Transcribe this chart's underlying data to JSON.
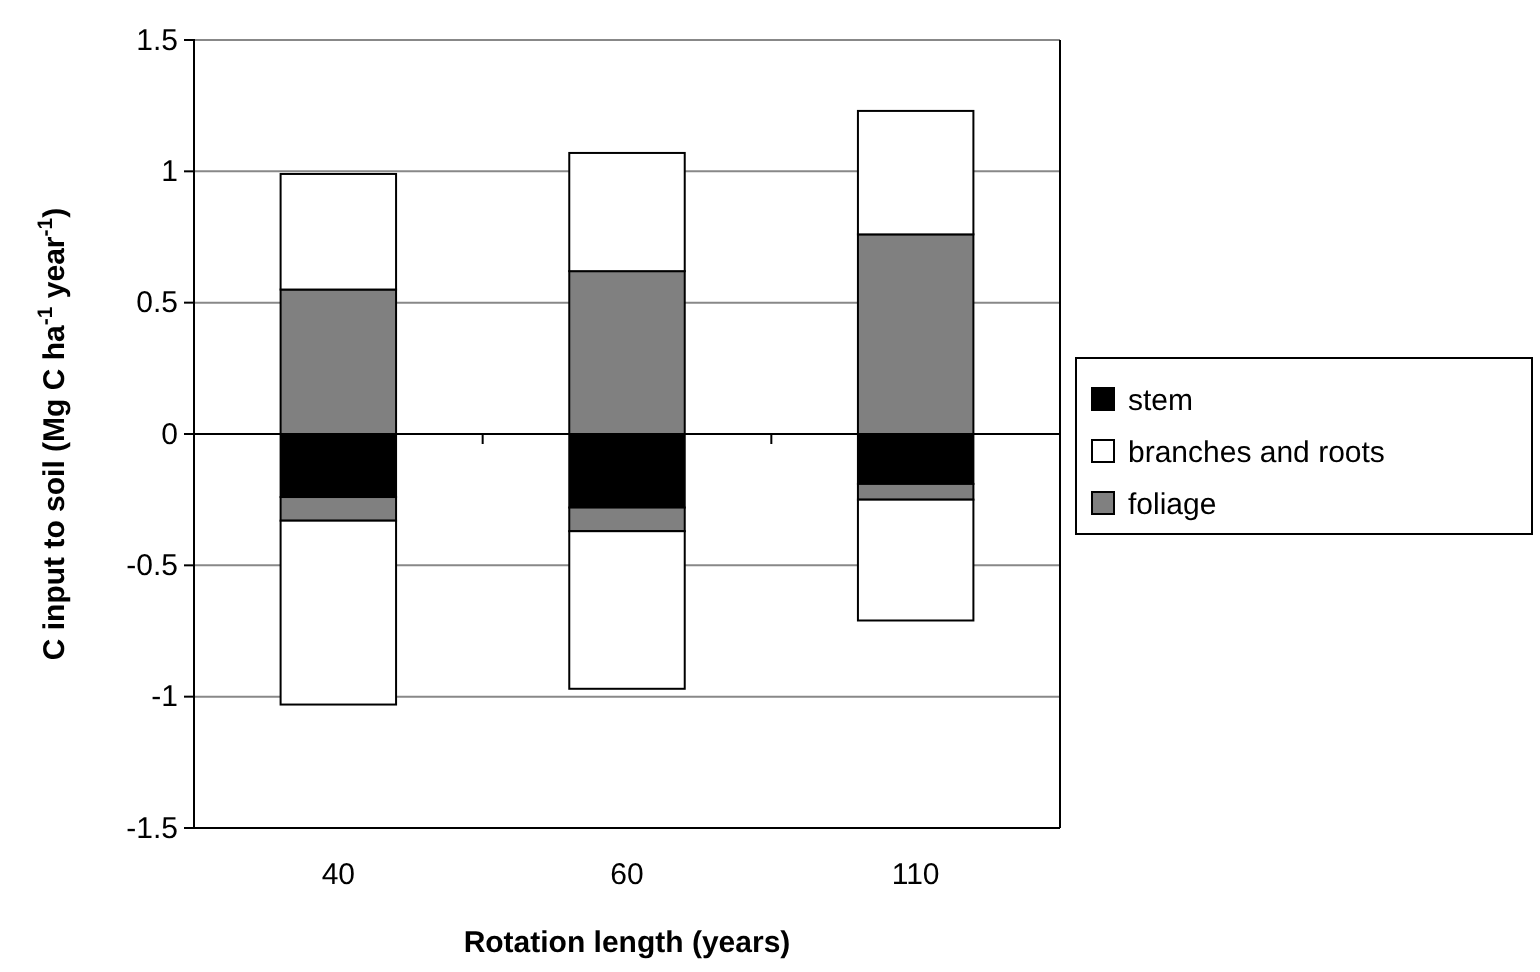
{
  "chart_data": {
    "type": "bar",
    "stacked": true,
    "xlabel": "Rotation length (years)",
    "ylabel": "C input to soil (Mg C ha$^{-1}$ year$^{-1}$)",
    "categories": [
      "40",
      "60",
      "110"
    ],
    "series": [
      {
        "name": "stem",
        "color": "#000000",
        "values": [
          -0.24,
          -0.28,
          -0.19
        ]
      },
      {
        "color": "#808080",
        "values": [
          -0.09,
          -0.09,
          -0.06
        ]
      },
      {
        "name": "branches and roots",
        "color": "#ffffff",
        "values": [
          -0.7,
          -0.6,
          -0.46
        ]
      },
      {
        "name": "foliage",
        "color": "#808080",
        "values": [
          0.55,
          0.62,
          0.76
        ]
      },
      {
        "color": "#ffffff",
        "values": [
          0.44,
          0.45,
          0.47
        ]
      }
    ],
    "ylim": [
      -1.5,
      1.5
    ],
    "yticks": [
      -1.5,
      -1,
      -0.5,
      0,
      0.5,
      1,
      1.5
    ],
    "grid": "y",
    "legend": "right"
  }
}
